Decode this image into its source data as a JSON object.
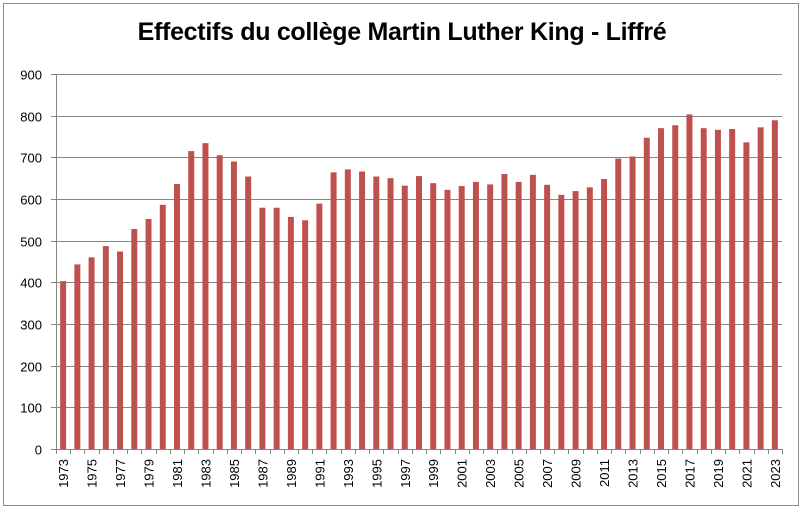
{
  "chart_data": {
    "type": "bar",
    "title": "Effectifs du collège Martin Luther King - Liffré",
    "xlabel": "",
    "ylabel": "",
    "ylim": [
      0,
      900
    ],
    "yticks": [
      0,
      100,
      200,
      300,
      400,
      500,
      600,
      700,
      800,
      900
    ],
    "grid": true,
    "legend": "none",
    "bar_color": "#c0504d",
    "categories": [
      "1973",
      "1974",
      "1975",
      "1976",
      "1977",
      "1978",
      "1979",
      "1980",
      "1981",
      "1982",
      "1983",
      "1984",
      "1985",
      "1986",
      "1987",
      "1988",
      "1989",
      "1990",
      "1991",
      "1992",
      "1993",
      "1994",
      "1995",
      "1996",
      "1997",
      "1998",
      "1999",
      "2000",
      "2001",
      "2002",
      "2003",
      "2004",
      "2005",
      "2006",
      "2007",
      "2008",
      "2009",
      "2010",
      "2011",
      "2012",
      "2013",
      "2014",
      "2015",
      "2016",
      "2017",
      "2018",
      "2019",
      "2020",
      "2021",
      "2022",
      "2023"
    ],
    "xtick_labels": [
      "1973",
      "1975",
      "1977",
      "1979",
      "1981",
      "1983",
      "1985",
      "1987",
      "1989",
      "1991",
      "1993",
      "1995",
      "1997",
      "1999",
      "2001",
      "2003",
      "2005",
      "2007",
      "2009",
      "2011",
      "2013",
      "2015",
      "2017",
      "2019",
      "2021",
      "2023"
    ],
    "values": [
      403,
      443,
      460,
      487,
      474,
      528,
      552,
      586,
      636,
      715,
      734,
      705,
      690,
      654,
      579,
      579,
      557,
      549,
      589,
      664,
      671,
      666,
      654,
      650,
      632,
      655,
      638,
      622,
      631,
      641,
      635,
      660,
      641,
      658,
      634,
      610,
      619,
      628,
      648,
      697,
      702,
      747,
      770,
      777,
      803,
      770,
      766,
      768,
      736,
      772,
      789
    ]
  }
}
